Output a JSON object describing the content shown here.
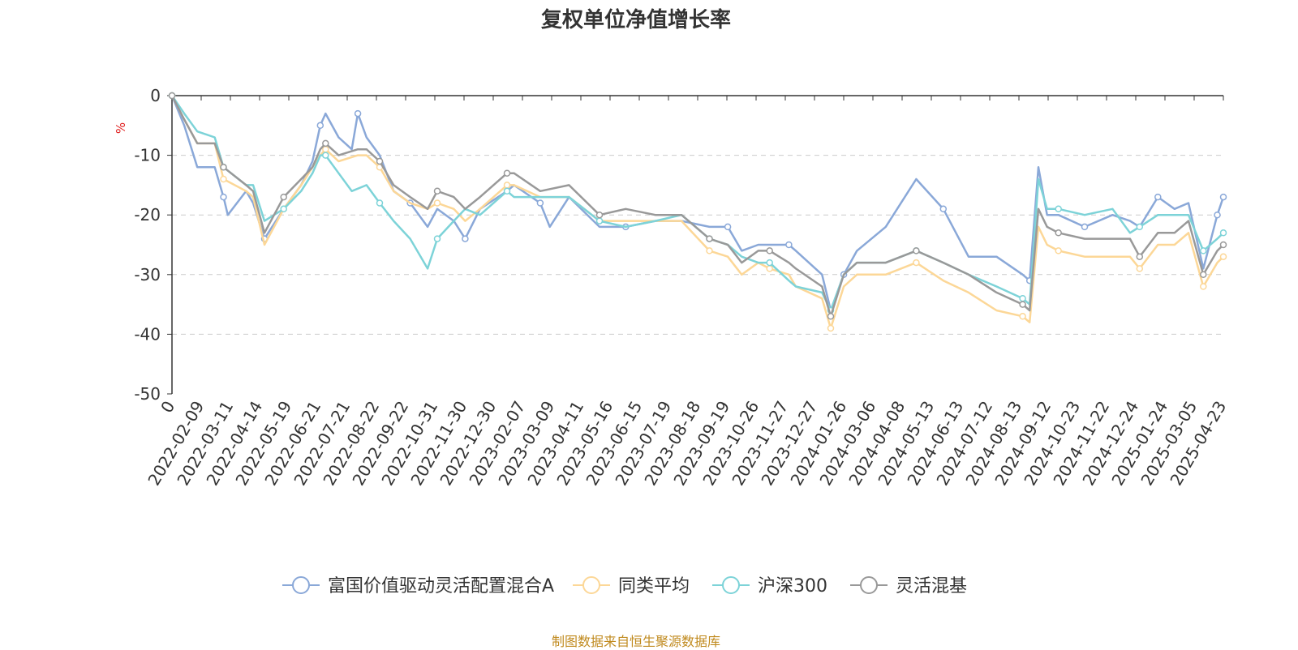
{
  "chart_data": {
    "type": "line",
    "title": "复权单位净值增长率",
    "ylabel": "%",
    "ylim": [
      -50,
      0
    ],
    "yticks": [
      0,
      -10,
      -20,
      -30,
      -40,
      -50
    ],
    "grid": true,
    "legend_position": "bottom",
    "x_range": [
      "2022-01-11",
      "2025-04-30"
    ],
    "x_tick_labels": [
      "0",
      "2022-02-09",
      "2022-03-11",
      "2022-04-14",
      "2022-05-19",
      "2022-06-21",
      "2022-07-21",
      "2022-08-22",
      "2022-09-22",
      "2022-10-31",
      "2022-11-30",
      "2022-12-30",
      "2023-02-07",
      "2023-03-09",
      "2023-04-11",
      "2023-05-16",
      "2023-06-15",
      "2023-07-19",
      "2023-08-18",
      "2023-09-19",
      "2023-10-26",
      "2023-11-27",
      "2023-12-27",
      "2024-01-26",
      "2024-03-06",
      "2024-04-08",
      "2024-05-13",
      "2024-06-13",
      "2024-07-12",
      "2024-08-13",
      "2024-09-12",
      "2024-10-23",
      "2024-11-22",
      "2024-12-24",
      "2025-01-24",
      "2025-03-05",
      "2025-04-23"
    ],
    "series": [
      {
        "name": "富国价值驱动灵活配置混合A",
        "color": "#8aa8d8",
        "points": [
          [
            "2022-01-11",
            0
          ],
          [
            "2022-01-25",
            -5
          ],
          [
            "2022-02-09",
            -12
          ],
          [
            "2022-03-01",
            -12
          ],
          [
            "2022-03-11",
            -17
          ],
          [
            "2022-03-16",
            -20
          ],
          [
            "2022-04-06",
            -16
          ],
          [
            "2022-04-14",
            -18
          ],
          [
            "2022-04-27",
            -24
          ],
          [
            "2022-05-19",
            -19
          ],
          [
            "2022-06-08",
            -15
          ],
          [
            "2022-06-21",
            -11
          ],
          [
            "2022-06-30",
            -5
          ],
          [
            "2022-07-06",
            -3
          ],
          [
            "2022-07-21",
            -7
          ],
          [
            "2022-08-05",
            -9
          ],
          [
            "2022-08-12",
            -3
          ],
          [
            "2022-08-22",
            -7
          ],
          [
            "2022-09-06",
            -10
          ],
          [
            "2022-09-22",
            -16
          ],
          [
            "2022-10-11",
            -18
          ],
          [
            "2022-10-31",
            -22
          ],
          [
            "2022-11-11",
            -19
          ],
          [
            "2022-11-30",
            -21
          ],
          [
            "2022-12-13",
            -24
          ],
          [
            "2022-12-30",
            -19
          ],
          [
            "2023-01-30",
            -16
          ],
          [
            "2023-02-07",
            -15
          ],
          [
            "2023-03-09",
            -18
          ],
          [
            "2023-03-20",
            -22
          ],
          [
            "2023-04-11",
            -17
          ],
          [
            "2023-05-16",
            -22
          ],
          [
            "2023-06-15",
            -22
          ],
          [
            "2023-07-19",
            -21
          ],
          [
            "2023-08-18",
            -21
          ],
          [
            "2023-09-19",
            -22
          ],
          [
            "2023-10-10",
            -22
          ],
          [
            "2023-10-26",
            -26
          ],
          [
            "2023-11-14",
            -25
          ],
          [
            "2023-11-27",
            -25
          ],
          [
            "2023-12-19",
            -25
          ],
          [
            "2023-12-27",
            -26
          ],
          [
            "2024-01-26",
            -30
          ],
          [
            "2024-02-05",
            -36
          ],
          [
            "2024-02-20",
            -30
          ],
          [
            "2024-03-06",
            -26
          ],
          [
            "2024-04-08",
            -22
          ],
          [
            "2024-05-13",
            -14
          ],
          [
            "2024-06-13",
            -19
          ],
          [
            "2024-07-12",
            -27
          ],
          [
            "2024-08-13",
            -27
          ],
          [
            "2024-09-12",
            -30
          ],
          [
            "2024-09-20",
            -31
          ],
          [
            "2024-09-30",
            -12
          ],
          [
            "2024-10-10",
            -20
          ],
          [
            "2024-10-23",
            -20
          ],
          [
            "2024-11-22",
            -22
          ],
          [
            "2024-12-24",
            -20
          ],
          [
            "2025-01-13",
            -21
          ],
          [
            "2025-01-24",
            -22
          ],
          [
            "2025-02-14",
            -17
          ],
          [
            "2025-03-05",
            -19
          ],
          [
            "2025-03-21",
            -18
          ],
          [
            "2025-04-07",
            -29
          ],
          [
            "2025-04-23",
            -20
          ],
          [
            "2025-04-30",
            -17
          ]
        ]
      },
      {
        "name": "同类平均",
        "color": "#fcd797",
        "points": [
          [
            "2022-01-11",
            0
          ],
          [
            "2022-01-25",
            -4
          ],
          [
            "2022-02-09",
            -8
          ],
          [
            "2022-03-01",
            -8
          ],
          [
            "2022-03-11",
            -14
          ],
          [
            "2022-04-06",
            -16
          ],
          [
            "2022-04-14",
            -17
          ],
          [
            "2022-04-27",
            -25
          ],
          [
            "2022-05-19",
            -19
          ],
          [
            "2022-06-08",
            -15
          ],
          [
            "2022-06-21",
            -12
          ],
          [
            "2022-06-30",
            -10
          ],
          [
            "2022-07-06",
            -9
          ],
          [
            "2022-07-21",
            -11
          ],
          [
            "2022-08-12",
            -10
          ],
          [
            "2022-08-22",
            -10
          ],
          [
            "2022-09-06",
            -12
          ],
          [
            "2022-09-22",
            -16
          ],
          [
            "2022-10-11",
            -18
          ],
          [
            "2022-10-31",
            -19
          ],
          [
            "2022-11-11",
            -18
          ],
          [
            "2022-11-30",
            -19
          ],
          [
            "2022-12-13",
            -21
          ],
          [
            "2022-12-30",
            -19
          ],
          [
            "2023-01-30",
            -15
          ],
          [
            "2023-02-07",
            -15
          ],
          [
            "2023-03-09",
            -17
          ],
          [
            "2023-04-11",
            -17
          ],
          [
            "2023-05-16",
            -21
          ],
          [
            "2023-06-15",
            -21
          ],
          [
            "2023-07-19",
            -21
          ],
          [
            "2023-08-18",
            -21
          ],
          [
            "2023-09-19",
            -26
          ],
          [
            "2023-10-10",
            -27
          ],
          [
            "2023-10-26",
            -30
          ],
          [
            "2023-11-14",
            -28
          ],
          [
            "2023-11-27",
            -29
          ],
          [
            "2023-12-19",
            -30
          ],
          [
            "2023-12-27",
            -32
          ],
          [
            "2024-01-26",
            -34
          ],
          [
            "2024-02-05",
            -39
          ],
          [
            "2024-02-20",
            -32
          ],
          [
            "2024-03-06",
            -30
          ],
          [
            "2024-04-08",
            -30
          ],
          [
            "2024-05-13",
            -28
          ],
          [
            "2024-06-13",
            -31
          ],
          [
            "2024-07-12",
            -33
          ],
          [
            "2024-08-13",
            -36
          ],
          [
            "2024-09-12",
            -37
          ],
          [
            "2024-09-20",
            -38
          ],
          [
            "2024-09-30",
            -22
          ],
          [
            "2024-10-10",
            -25
          ],
          [
            "2024-10-23",
            -26
          ],
          [
            "2024-11-22",
            -27
          ],
          [
            "2024-12-24",
            -27
          ],
          [
            "2025-01-13",
            -27
          ],
          [
            "2025-01-24",
            -29
          ],
          [
            "2025-02-14",
            -25
          ],
          [
            "2025-03-05",
            -25
          ],
          [
            "2025-03-21",
            -23
          ],
          [
            "2025-04-07",
            -32
          ],
          [
            "2025-04-23",
            -28
          ],
          [
            "2025-04-30",
            -27
          ]
        ]
      },
      {
        "name": "沪深300",
        "color": "#7dd3d8",
        "points": [
          [
            "2022-01-11",
            0
          ],
          [
            "2022-01-25",
            -3
          ],
          [
            "2022-02-09",
            -6
          ],
          [
            "2022-03-01",
            -7
          ],
          [
            "2022-03-11",
            -12
          ],
          [
            "2022-04-06",
            -15
          ],
          [
            "2022-04-14",
            -15
          ],
          [
            "2022-04-27",
            -21
          ],
          [
            "2022-05-19",
            -19
          ],
          [
            "2022-06-08",
            -16
          ],
          [
            "2022-06-21",
            -13
          ],
          [
            "2022-06-30",
            -10
          ],
          [
            "2022-07-06",
            -10
          ],
          [
            "2022-07-21",
            -13
          ],
          [
            "2022-08-05",
            -16
          ],
          [
            "2022-08-22",
            -15
          ],
          [
            "2022-09-06",
            -18
          ],
          [
            "2022-09-22",
            -21
          ],
          [
            "2022-10-11",
            -24
          ],
          [
            "2022-10-31",
            -29
          ],
          [
            "2022-11-11",
            -24
          ],
          [
            "2022-11-30",
            -21
          ],
          [
            "2022-12-13",
            -19
          ],
          [
            "2022-12-30",
            -20
          ],
          [
            "2023-01-30",
            -16
          ],
          [
            "2023-02-07",
            -17
          ],
          [
            "2023-03-09",
            -17
          ],
          [
            "2023-04-11",
            -17
          ],
          [
            "2023-05-16",
            -21
          ],
          [
            "2023-06-15",
            -22
          ],
          [
            "2023-07-19",
            -21
          ],
          [
            "2023-08-18",
            -20
          ],
          [
            "2023-09-19",
            -24
          ],
          [
            "2023-10-10",
            -25
          ],
          [
            "2023-10-26",
            -27
          ],
          [
            "2023-11-14",
            -28
          ],
          [
            "2023-11-27",
            -28
          ],
          [
            "2023-12-19",
            -31
          ],
          [
            "2023-12-27",
            -32
          ],
          [
            "2024-01-26",
            -33
          ],
          [
            "2024-02-05",
            -36
          ],
          [
            "2024-02-20",
            -30
          ],
          [
            "2024-03-06",
            -28
          ],
          [
            "2024-04-08",
            -28
          ],
          [
            "2024-05-13",
            -26
          ],
          [
            "2024-06-13",
            -28
          ],
          [
            "2024-07-12",
            -30
          ],
          [
            "2024-08-13",
            -32
          ],
          [
            "2024-09-12",
            -34
          ],
          [
            "2024-09-20",
            -35
          ],
          [
            "2024-09-30",
            -14
          ],
          [
            "2024-10-10",
            -19
          ],
          [
            "2024-10-23",
            -19
          ],
          [
            "2024-11-22",
            -20
          ],
          [
            "2024-12-24",
            -19
          ],
          [
            "2025-01-13",
            -23
          ],
          [
            "2025-01-24",
            -22
          ],
          [
            "2025-02-14",
            -20
          ],
          [
            "2025-03-05",
            -20
          ],
          [
            "2025-03-21",
            -20
          ],
          [
            "2025-04-07",
            -26
          ],
          [
            "2025-04-23",
            -24
          ],
          [
            "2025-04-30",
            -23
          ]
        ]
      },
      {
        "name": "灵活混基",
        "color": "#999999",
        "points": [
          [
            "2022-01-11",
            0
          ],
          [
            "2022-01-25",
            -4
          ],
          [
            "2022-02-09",
            -8
          ],
          [
            "2022-03-01",
            -8
          ],
          [
            "2022-03-11",
            -12
          ],
          [
            "2022-04-06",
            -15
          ],
          [
            "2022-04-14",
            -16
          ],
          [
            "2022-04-27",
            -23
          ],
          [
            "2022-05-19",
            -17
          ],
          [
            "2022-06-08",
            -14
          ],
          [
            "2022-06-21",
            -12
          ],
          [
            "2022-06-30",
            -9
          ],
          [
            "2022-07-06",
            -8
          ],
          [
            "2022-07-21",
            -10
          ],
          [
            "2022-08-12",
            -9
          ],
          [
            "2022-08-22",
            -9
          ],
          [
            "2022-09-06",
            -11
          ],
          [
            "2022-09-22",
            -15
          ],
          [
            "2022-10-11",
            -17
          ],
          [
            "2022-10-31",
            -19
          ],
          [
            "2022-11-11",
            -16
          ],
          [
            "2022-11-30",
            -17
          ],
          [
            "2022-12-13",
            -19
          ],
          [
            "2022-12-30",
            -17
          ],
          [
            "2023-01-30",
            -13
          ],
          [
            "2023-02-07",
            -13
          ],
          [
            "2023-03-09",
            -16
          ],
          [
            "2023-04-11",
            -15
          ],
          [
            "2023-05-16",
            -20
          ],
          [
            "2023-06-15",
            -19
          ],
          [
            "2023-07-19",
            -20
          ],
          [
            "2023-08-18",
            -20
          ],
          [
            "2023-09-19",
            -24
          ],
          [
            "2023-10-10",
            -25
          ],
          [
            "2023-10-26",
            -28
          ],
          [
            "2023-11-14",
            -26
          ],
          [
            "2023-11-27",
            -26
          ],
          [
            "2023-12-19",
            -28
          ],
          [
            "2023-12-27",
            -29
          ],
          [
            "2024-01-26",
            -32
          ],
          [
            "2024-02-05",
            -37
          ],
          [
            "2024-02-20",
            -30
          ],
          [
            "2024-03-06",
            -28
          ],
          [
            "2024-04-08",
            -28
          ],
          [
            "2024-05-13",
            -26
          ],
          [
            "2024-06-13",
            -28
          ],
          [
            "2024-07-12",
            -30
          ],
          [
            "2024-08-13",
            -33
          ],
          [
            "2024-09-12",
            -35
          ],
          [
            "2024-09-20",
            -36
          ],
          [
            "2024-09-30",
            -19
          ],
          [
            "2024-10-10",
            -22
          ],
          [
            "2024-10-23",
            -23
          ],
          [
            "2024-11-22",
            -24
          ],
          [
            "2024-12-24",
            -24
          ],
          [
            "2025-01-13",
            -24
          ],
          [
            "2025-01-24",
            -27
          ],
          [
            "2025-02-14",
            -23
          ],
          [
            "2025-03-05",
            -23
          ],
          [
            "2025-03-21",
            -21
          ],
          [
            "2025-04-07",
            -30
          ],
          [
            "2025-04-23",
            -26
          ],
          [
            "2025-04-30",
            -25
          ]
        ]
      }
    ]
  },
  "footer": "制图数据来自恒生聚源数据库"
}
